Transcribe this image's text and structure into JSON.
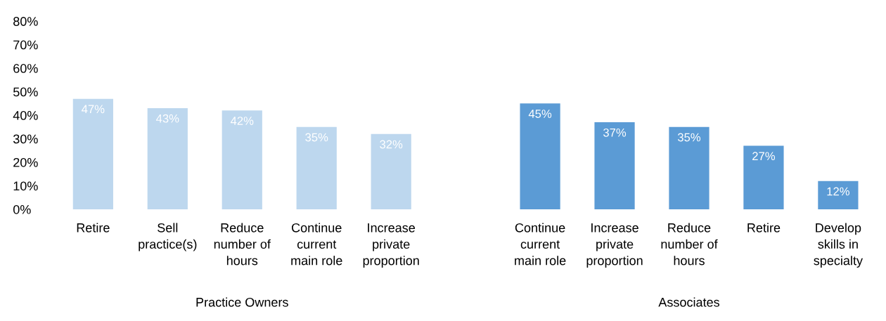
{
  "chart_data": {
    "type": "bar",
    "categories": [
      "Retire",
      "Sell\npractice(s)",
      "Reduce\nnumber of\nhours",
      "Continue\ncurrent\nmain role",
      "Increase\nprivate\nproportion",
      null,
      "Continue\ncurrent\nmain role",
      "Increase\nprivate\nproportion",
      "Reduce\nnumber of\nhours",
      "Retire",
      "Develop\nskills in\nspecialty"
    ],
    "series": [
      {
        "color": "#bdd7ee",
        "values": [
          47,
          43,
          42,
          35,
          32,
          null,
          null,
          null,
          null,
          null,
          null
        ],
        "value_labels": [
          "47%",
          "43%",
          "42%",
          "35%",
          "32%",
          null,
          null,
          null,
          null,
          null,
          null
        ]
      },
      {
        "color": "#5b9bd5",
        "values": [
          null,
          null,
          null,
          null,
          null,
          null,
          45,
          37,
          35,
          27,
          12
        ],
        "value_labels": [
          null,
          null,
          null,
          null,
          null,
          null,
          "45%",
          "37%",
          "35%",
          "27%",
          "12%"
        ]
      }
    ],
    "ylim": [
      0,
      80
    ],
    "yticks": [
      {
        "value": 0,
        "label": "0%"
      },
      {
        "value": 10,
        "label": "10%"
      },
      {
        "value": 20,
        "label": "20%"
      },
      {
        "value": 30,
        "label": "30%"
      },
      {
        "value": 40,
        "label": "40%"
      },
      {
        "value": 50,
        "label": "50%"
      },
      {
        "value": 60,
        "label": "60%"
      },
      {
        "value": 70,
        "label": "70%"
      },
      {
        "value": 80,
        "label": "80%"
      }
    ],
    "grid": false,
    "annotations": [
      "Practice Owners",
      "Associates"
    ]
  }
}
